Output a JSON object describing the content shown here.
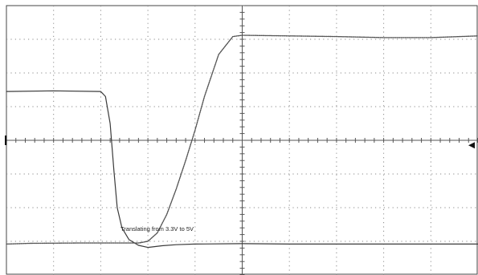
{
  "chart_data": {
    "type": "line",
    "title": "",
    "xlabel": "",
    "ylabel": "",
    "annotation": "Translating from 3.3V to 5V",
    "x_divisions": 10,
    "y_divisions": 8,
    "xlim": [
      0,
      10
    ],
    "ylim": [
      -4,
      4
    ],
    "grid": true,
    "trigger_marker": "right",
    "series": [
      {
        "style": "solid",
        "color": "#3a3a3a",
        "x": [
          0,
          1.0,
          2.0,
          2.1,
          2.2,
          2.28,
          2.35,
          2.45,
          2.6,
          2.8,
          3.0,
          3.3,
          3.6,
          4.0,
          5.0,
          6.0,
          7.0,
          8.0,
          9.0,
          10.0
        ],
        "y": [
          1.45,
          1.47,
          1.45,
          1.3,
          0.5,
          -0.9,
          -2.0,
          -2.6,
          -2.95,
          -3.12,
          -3.18,
          -3.13,
          -3.1,
          -3.08,
          -3.07,
          -3.08,
          -3.08,
          -3.08,
          -3.08,
          -3.08
        ]
      },
      {
        "style": "dotted",
        "color": "#555555",
        "x": [
          0,
          0.5,
          1.5,
          2.5,
          2.8,
          3.0,
          3.2,
          3.4,
          3.6,
          3.8,
          4.0,
          4.2,
          4.5,
          4.8,
          5.0,
          6.0,
          7.0,
          8.0,
          9.0,
          10.0
        ],
        "y": [
          -3.08,
          -3.06,
          -3.05,
          -3.05,
          -3.05,
          -3.0,
          -2.75,
          -2.2,
          -1.45,
          -0.6,
          0.3,
          1.3,
          2.55,
          3.08,
          3.12,
          3.1,
          3.08,
          3.05,
          3.05,
          3.1
        ]
      }
    ]
  }
}
